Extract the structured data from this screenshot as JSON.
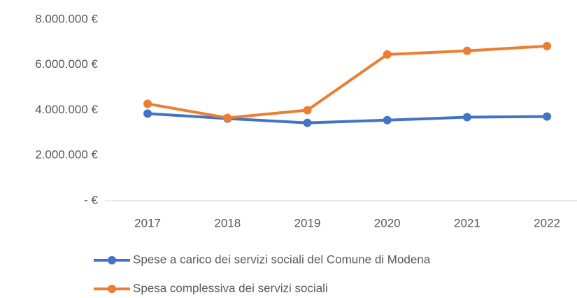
{
  "chart_data": {
    "type": "line",
    "categories": [
      "2017",
      "2018",
      "2019",
      "2020",
      "2021",
      "2022"
    ],
    "series": [
      {
        "name": "Spese a carico dei servizi sociali del Comune di Modena",
        "color": "#4472c4",
        "values": [
          3850000,
          3630000,
          3440000,
          3560000,
          3690000,
          3720000
        ]
      },
      {
        "name": "Spesa complessiva dei servizi sociali",
        "color": "#ed7d31",
        "values": [
          4280000,
          3660000,
          4000000,
          6460000,
          6620000,
          6830000
        ]
      }
    ],
    "ylim": [
      0,
      8000000
    ],
    "yticks": [
      {
        "value": 0,
        "label": "-  €"
      },
      {
        "value": 2000000,
        "label": "2.000.000 €"
      },
      {
        "value": 4000000,
        "label": "4.000.000 €"
      },
      {
        "value": 6000000,
        "label": "6.000.000 €"
      },
      {
        "value": 8000000,
        "label": "8.000.000 €"
      }
    ],
    "grid": false
  }
}
